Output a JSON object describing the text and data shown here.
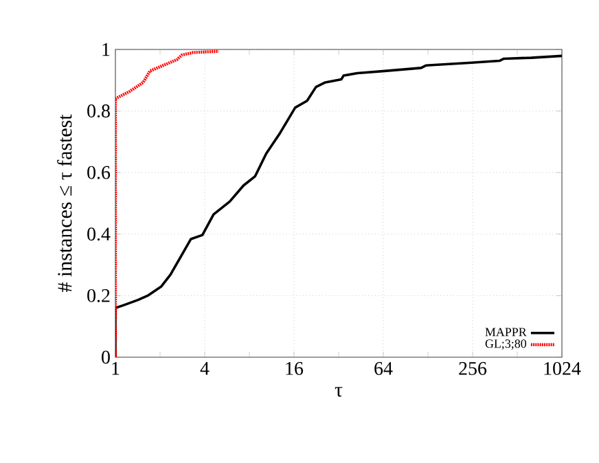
{
  "chart_data": {
    "type": "line",
    "xlabel": "τ",
    "ylabel": "# instances ≤ τ fastest",
    "log": "x",
    "xlim": [
      1,
      1024
    ],
    "ylim": [
      0,
      1
    ],
    "xticks": [
      1,
      {
        "value": 2,
        "label": null
      },
      4,
      {
        "value": 8,
        "label": null
      },
      16,
      {
        "value": 32,
        "label": null
      },
      64,
      {
        "value": 128,
        "label": null
      },
      256,
      {
        "value": 512,
        "label": null
      },
      1024
    ],
    "yticks": [
      0,
      0.2,
      0.4,
      0.6,
      0.8,
      1
    ],
    "grid": true,
    "legend": "bottom right",
    "marker": "none",
    "series": [
      {
        "name": "MAPPR",
        "color": "#000000",
        "line_style": "solid",
        "x": [
          1,
          1,
          1.15,
          1.42,
          1.65,
          2.04,
          2.35,
          2.71,
          3.23,
          3.86,
          4.59,
          5.9,
          7.31,
          8.75,
          10.4,
          12.9,
          16.3,
          19.6,
          22.5,
          26,
          33.4,
          34.5,
          42.8,
          65.3,
          115,
          124,
          252,
          388,
          416,
          635,
          1024
        ],
        "values": [
          0,
          0.16,
          0.17,
          0.186,
          0.2,
          0.23,
          0.268,
          0.32,
          0.384,
          0.397,
          0.464,
          0.506,
          0.558,
          0.588,
          0.662,
          0.729,
          0.811,
          0.833,
          0.878,
          0.893,
          0.903,
          0.915,
          0.923,
          0.93,
          0.94,
          0.948,
          0.957,
          0.963,
          0.97,
          0.973,
          0.979
        ]
      },
      {
        "name": "GL;3;80",
        "color": "#ff0000",
        "line_style": "dotted",
        "x": [
          1,
          1,
          1.24,
          1.54,
          1.71,
          2.19,
          2.6,
          2.81,
          3.34,
          4.96
        ],
        "values": [
          0,
          0.84,
          0.863,
          0.893,
          0.93,
          0.952,
          0.967,
          0.982,
          0.99,
          0.994
        ]
      }
    ]
  }
}
